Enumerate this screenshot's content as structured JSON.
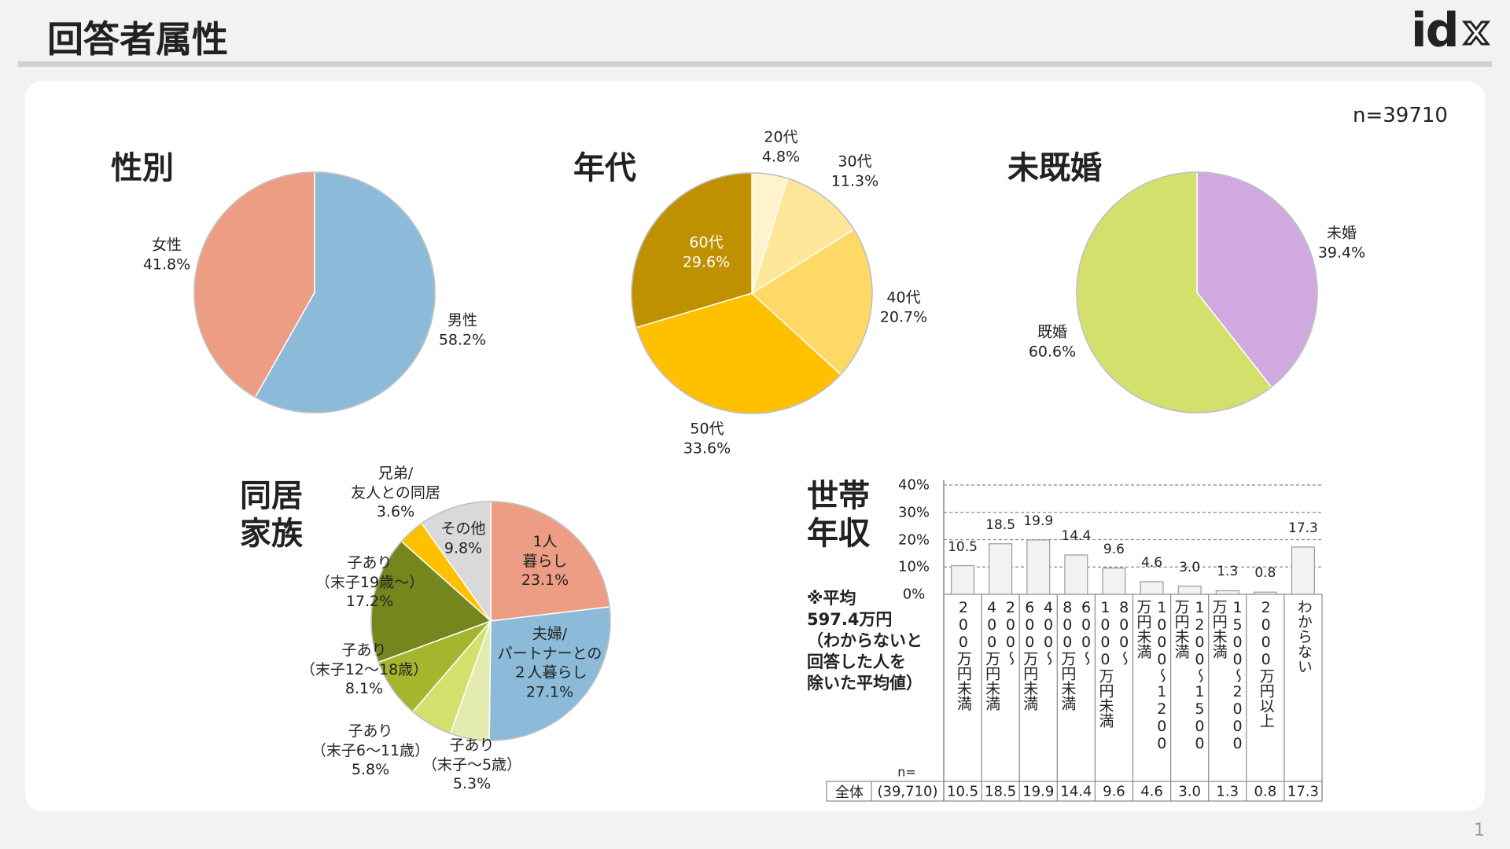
{
  "header": {
    "title": "回答者属性",
    "logo": "id"
  },
  "sample_size": "n=39710",
  "page_number": "1",
  "chart_data": [
    {
      "type": "pie",
      "title": "性別",
      "categories": [
        "男性",
        "女性"
      ],
      "values": [
        58.2,
        41.8
      ],
      "value_labels": [
        "58.2%",
        "41.8%"
      ],
      "colors": [
        "#8cbbd9",
        "#ec9d83"
      ]
    },
    {
      "type": "pie",
      "title": "年代",
      "categories": [
        "20代",
        "30代",
        "40代",
        "50代",
        "60代"
      ],
      "values": [
        4.8,
        11.3,
        20.7,
        33.6,
        29.6
      ],
      "value_labels": [
        "4.8%",
        "11.3%",
        "20.7%",
        "33.6%",
        "29.6%"
      ],
      "colors": [
        "#fff3cc",
        "#ffe699",
        "#ffd966",
        "#ffc000",
        "#bf9000"
      ]
    },
    {
      "type": "pie",
      "title": "未既婚",
      "categories": [
        "未婚",
        "既婚"
      ],
      "values": [
        39.4,
        60.6
      ],
      "value_labels": [
        "39.4%",
        "60.6%"
      ],
      "colors": [
        "#d0a9e0",
        "#d4e06c"
      ]
    },
    {
      "type": "pie",
      "title": "同居\n家族",
      "categories": [
        "1人\n暮らし",
        "夫婦/\nパートナーとの\n２人暮らし",
        "子あり\n（末子～5歳）",
        "子あり\n（末子6～11歳）",
        "子あり\n（末子12～18歳）",
        "子あり\n（末子19歳～）",
        "兄弟/\n友人との同居",
        "その他"
      ],
      "values": [
        23.1,
        27.1,
        5.3,
        5.8,
        8.1,
        17.2,
        3.6,
        9.8
      ],
      "value_labels": [
        "23.1%",
        "27.1%",
        "5.3%",
        "5.8%",
        "8.1%",
        "17.2%",
        "3.6%",
        "9.8%"
      ],
      "colors": [
        "#ec9d83",
        "#8cbbd9",
        "#e4ebb0",
        "#d4e06c",
        "#a3b62e",
        "#76861e",
        "#ffc000",
        "#d9d9d9"
      ]
    },
    {
      "type": "bar",
      "title": "世帯\n年収",
      "categories": [
        "200万円未満",
        "200～\n400万円未満",
        "400～\n600万円未満",
        "600～\n800万円未満",
        "800～\n1000万円未満",
        "1000～1200\n万円未満",
        "1200～1500\n万円未満",
        "1500～2000\n万円未満",
        "2000万円以上",
        "わからない"
      ],
      "values": [
        10.5,
        18.5,
        19.9,
        14.4,
        9.6,
        4.6,
        3.0,
        1.3,
        0.8,
        17.3
      ],
      "value_labels": [
        "10.5",
        "18.5",
        "19.9",
        "14.4",
        "9.6",
        "4.6",
        "3.0",
        "1.3",
        "0.8",
        "17.3"
      ],
      "color": "#f2f2f2",
      "ylim": [
        0,
        40
      ],
      "yticks": [
        {
          "value": 0,
          "label": "0%"
        },
        {
          "value": 10,
          "label": "10%"
        },
        {
          "value": 20,
          "label": "20%"
        },
        {
          "value": 30,
          "label": "30%"
        },
        {
          "value": 40,
          "label": "40%"
        }
      ],
      "grid": true,
      "annotation": "※平均\n597.4万円\n（わからないと\n回答した人を\n除いた平均値）",
      "table": {
        "row_label": "全体",
        "n_label": "n=",
        "n_value": "(39,710)"
      }
    }
  ]
}
